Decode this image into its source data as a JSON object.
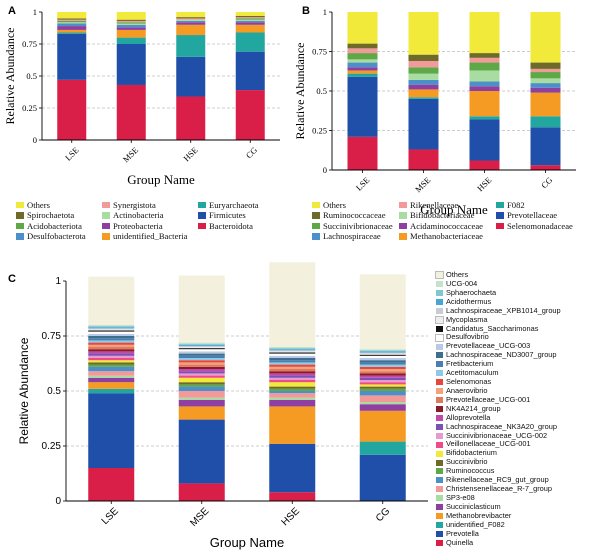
{
  "chart_data": [
    {
      "type": "bar",
      "panel_label": "A",
      "stacked": true,
      "xlabel": "Group Name",
      "ylabel": "Relative Abundance",
      "ylim": [
        0,
        1
      ],
      "yticks": [
        "0",
        "0.25",
        "0.5",
        "0.75",
        "1"
      ],
      "categories": [
        "LSE",
        "MSE",
        "HSE",
        "CG"
      ],
      "grid": "dashed horizontal at 0.25, 0.5, 0.75",
      "series": [
        {
          "name": "Bacteroidota",
          "color": "#d91e48",
          "values": [
            0.47,
            0.43,
            0.34,
            0.39
          ]
        },
        {
          "name": "Firmicutes",
          "color": "#1f4fa8",
          "values": [
            0.36,
            0.32,
            0.31,
            0.3
          ]
        },
        {
          "name": "Euryarchaeota",
          "color": "#22a6a0",
          "values": [
            0.01,
            0.05,
            0.17,
            0.15
          ]
        },
        {
          "name": "unidentified_Bacteria",
          "color": "#f59a22",
          "values": [
            0.02,
            0.06,
            0.08,
            0.06
          ]
        },
        {
          "name": "Proteobacteria",
          "color": "#8e3fa0",
          "values": [
            0.03,
            0.02,
            0.02,
            0.02
          ]
        },
        {
          "name": "Desulfobacterota",
          "color": "#4c8fc9",
          "values": [
            0.02,
            0.02,
            0.01,
            0.01
          ]
        },
        {
          "name": "Actinobacteria",
          "color": "#a8dca0",
          "values": [
            0.01,
            0.01,
            0.01,
            0.01
          ]
        },
        {
          "name": "Acidobacteriota",
          "color": "#5fa847",
          "values": [
            0.01,
            0.01,
            0.0,
            0.01
          ]
        },
        {
          "name": "Synergistota",
          "color": "#f29a9a",
          "values": [
            0.01,
            0.01,
            0.01,
            0.01
          ]
        },
        {
          "name": "Spirochaetota",
          "color": "#6e6a2a",
          "values": [
            0.01,
            0.01,
            0.01,
            0.01
          ]
        },
        {
          "name": "Others",
          "color": "#f2ea3a",
          "values": [
            0.05,
            0.06,
            0.04,
            0.03
          ]
        }
      ],
      "legend": {
        "placement": "bottom",
        "columns": [
          [
            "Others",
            "Spirochaetota",
            "Acidobacteriota",
            "Desulfobacterota"
          ],
          [
            "Synergistota",
            "Actinobacteria",
            "Proteobacteria",
            "unidentified_Bacteria"
          ],
          [
            "Euryarchaeota",
            "Firmicutes",
            "Bacteroidota"
          ]
        ]
      }
    },
    {
      "type": "bar",
      "panel_label": "B",
      "stacked": true,
      "xlabel": "Group Name",
      "ylabel": "Relative Abundance",
      "ylim": [
        0,
        1
      ],
      "yticks": [
        "0",
        "0.25",
        "0.5",
        "0.75",
        "1"
      ],
      "categories": [
        "LSE",
        "MSE",
        "HSE",
        "CG"
      ],
      "grid": "dashed horizontal at 0.25, 0.5, 0.75",
      "series": [
        {
          "name": "Selenomonadaceae",
          "color": "#d91e48",
          "values": [
            0.21,
            0.13,
            0.06,
            0.03
          ]
        },
        {
          "name": "Prevotellaceae",
          "color": "#1f4fa8",
          "values": [
            0.38,
            0.32,
            0.26,
            0.24
          ]
        },
        {
          "name": "F082",
          "color": "#22a6a0",
          "values": [
            0.02,
            0.01,
            0.02,
            0.07
          ]
        },
        {
          "name": "Methanobacteriaceae",
          "color": "#f59a22",
          "values": [
            0.02,
            0.05,
            0.16,
            0.15
          ]
        },
        {
          "name": "Acidaminococcaceae",
          "color": "#8e3fa0",
          "values": [
            0.02,
            0.03,
            0.03,
            0.03
          ]
        },
        {
          "name": "Lachnospiraceae",
          "color": "#4c8fc9",
          "values": [
            0.03,
            0.03,
            0.03,
            0.03
          ]
        },
        {
          "name": "Bifidobacteriaceae",
          "color": "#a8dca0",
          "values": [
            0.02,
            0.04,
            0.07,
            0.03
          ]
        },
        {
          "name": "Succinivibrionaceae",
          "color": "#5fa847",
          "values": [
            0.04,
            0.04,
            0.05,
            0.04
          ]
        },
        {
          "name": "Rikenellaceae",
          "color": "#f29a9a",
          "values": [
            0.03,
            0.04,
            0.03,
            0.02
          ]
        },
        {
          "name": "Ruminococcaceae",
          "color": "#6e6a2a",
          "values": [
            0.03,
            0.04,
            0.03,
            0.04
          ]
        },
        {
          "name": "Others",
          "color": "#f2ea3a",
          "values": [
            0.2,
            0.27,
            0.26,
            0.32
          ]
        }
      ],
      "legend": {
        "placement": "bottom",
        "columns": [
          [
            "Others",
            "Ruminococcaceae",
            "Succinivibrionaceae",
            "Lachnospiraceae"
          ],
          [
            "Rikenellaceae",
            "Bifidobacteriaceae",
            "Acidaminococcaceae",
            "Methanobacteriaceae"
          ],
          [
            "F082",
            "Prevotellaceae",
            "Selenomonadaceae"
          ]
        ]
      }
    },
    {
      "type": "bar",
      "panel_label": "C",
      "stacked": true,
      "xlabel": "Group Name",
      "ylabel": "Relative Abundance",
      "ylim": [
        0,
        1
      ],
      "yticks": [
        "0",
        "0.25",
        "0.5",
        "0.75",
        "1"
      ],
      "categories": [
        "LSE",
        "MSE",
        "HSE",
        "CG"
      ],
      "grid": "dashed horizontal at 0.25, 0.5, 0.75",
      "series": [
        {
          "name": "Quinella",
          "color": "#d91e48",
          "values": [
            0.15,
            0.08,
            0.04,
            0.0
          ]
        },
        {
          "name": "Prevotella",
          "color": "#1f4fa8",
          "values": [
            0.34,
            0.29,
            0.22,
            0.21
          ]
        },
        {
          "name": "unidentified_F082",
          "color": "#22a6a0",
          "values": [
            0.02,
            0.0,
            0.0,
            0.06
          ]
        },
        {
          "name": "Methanobrevibacter",
          "color": "#f59a22",
          "values": [
            0.03,
            0.06,
            0.17,
            0.14
          ]
        },
        {
          "name": "Succiniclasticum",
          "color": "#8e3fa0",
          "values": [
            0.02,
            0.03,
            0.03,
            0.03
          ]
        },
        {
          "name": "SP3-e08",
          "color": "#a8dca0",
          "values": [
            0.01,
            0.01,
            0.01,
            0.01
          ]
        },
        {
          "name": "Christensenellaceae_R-7_group",
          "color": "#f29a9a",
          "values": [
            0.02,
            0.03,
            0.02,
            0.03
          ]
        },
        {
          "name": "Rikenellaceae_RC9_gut_group",
          "color": "#4c8fc9",
          "values": [
            0.02,
            0.02,
            0.01,
            0.02
          ]
        },
        {
          "name": "Ruminococcus",
          "color": "#5fa847",
          "values": [
            0.01,
            0.01,
            0.01,
            0.01
          ]
        },
        {
          "name": "Succinivibrio",
          "color": "#6e6a2a",
          "values": [
            0.01,
            0.01,
            0.01,
            0.01
          ]
        },
        {
          "name": "Bifidobacterium",
          "color": "#f2ea3a",
          "values": [
            0.01,
            0.02,
            0.02,
            0.01
          ]
        },
        {
          "name": "Veillonellaceae_UCG-001",
          "color": "#ee4c86",
          "values": [
            0.01,
            0.01,
            0.01,
            0.01
          ]
        },
        {
          "name": "Succinivibrionaceae_UCG-002",
          "color": "#e79ad0",
          "values": [
            0.01,
            0.01,
            0.01,
            0.01
          ]
        },
        {
          "name": "Lachnospiraceae_NK3A20_group",
          "color": "#7a52b5",
          "values": [
            0.01,
            0.01,
            0.01,
            0.01
          ]
        },
        {
          "name": "Alloprevotella",
          "color": "#c04aa8",
          "values": [
            0.01,
            0.01,
            0.01,
            0.01
          ]
        },
        {
          "name": "NK4A214_group",
          "color": "#8b1a2b",
          "values": [
            0.01,
            0.01,
            0.01,
            0.01
          ]
        },
        {
          "name": "Prevotellaceae_UCG-001",
          "color": "#e07a5f",
          "values": [
            0.01,
            0.01,
            0.01,
            0.01
          ]
        },
        {
          "name": "Anaerovibrio",
          "color": "#f4a27a",
          "values": [
            0.01,
            0.01,
            0.01,
            0.01
          ]
        },
        {
          "name": "Selenomonas",
          "color": "#e8463a",
          "values": [
            0.01,
            0.01,
            0.01,
            0.01
          ]
        },
        {
          "name": "Acetitomaculum",
          "color": "#8fc9e8",
          "values": [
            0.01,
            0.01,
            0.01,
            0.01
          ]
        },
        {
          "name": "Fretibacterium",
          "color": "#4a7eb0",
          "values": [
            0.01,
            0.01,
            0.01,
            0.01
          ]
        },
        {
          "name": "Lachnospiraceae_ND3007_group",
          "color": "#3d6e8c",
          "values": [
            0.01,
            0.01,
            0.01,
            0.01
          ]
        },
        {
          "name": "Prevotellaceae_UCG-003",
          "color": "#b9c9e6",
          "values": [
            0.01,
            0.01,
            0.01,
            0.01
          ]
        },
        {
          "name": "Desulfovibrio",
          "color": "#ffffff",
          "values": [
            0.01,
            0.01,
            0.01,
            0.01
          ]
        },
        {
          "name": "Candidatus_Saccharimonas",
          "color": "#111111",
          "values": [
            0.005,
            0.005,
            0.005,
            0.005
          ]
        },
        {
          "name": "Mycoplasma",
          "color": "#eeeeee",
          "values": [
            0.005,
            0.005,
            0.005,
            0.005
          ]
        },
        {
          "name": "Lachnospiraceae_XPB1014_group",
          "color": "#c8ccd4",
          "values": [
            0.005,
            0.005,
            0.005,
            0.005
          ]
        },
        {
          "name": "Acidothermus",
          "color": "#48a6d6",
          "values": [
            0.005,
            0.005,
            0.005,
            0.005
          ]
        },
        {
          "name": "Sphaerochaeta",
          "color": "#7fc8d0",
          "values": [
            0.005,
            0.005,
            0.005,
            0.005
          ]
        },
        {
          "name": "UCG-004",
          "color": "#c5e3cc",
          "values": [
            0.005,
            0.005,
            0.005,
            0.005
          ]
        },
        {
          "name": "Others",
          "color": "#f3f0de",
          "values": [
            0.22,
            0.305,
            0.385,
            0.34
          ]
        }
      ],
      "legend": {
        "placement": "right",
        "items": [
          "Others",
          "UCG-004",
          "Sphaerochaeta",
          "Acidothermus",
          "Lachnospiraceae_XPB1014_group",
          "Mycoplasma",
          "Candidatus_Saccharimonas",
          "Desulfovibrio",
          "Prevotellaceae_UCG-003",
          "Lachnospiraceae_ND3007_group",
          "Fretibacterium",
          "Acetitomaculum",
          "Selenomonas",
          "Anaerovibrio",
          "Prevotellaceae_UCG-001",
          "NK4A214_group",
          "Alloprevotella",
          "Lachnospiraceae_NK3A20_group",
          "Succinivibrionaceae_UCG-002",
          "Veillonellaceae_UCG-001",
          "Bifidobacterium",
          "Succinivibrio",
          "Ruminococcus",
          "Rikenellaceae_RC9_gut_group",
          "Christensenellaceae_R-7_group",
          "SP3-e08",
          "Succiniclasticum",
          "Methanobrevibacter",
          "unidentified_F082",
          "Prevotella",
          "Quinella"
        ]
      }
    }
  ]
}
